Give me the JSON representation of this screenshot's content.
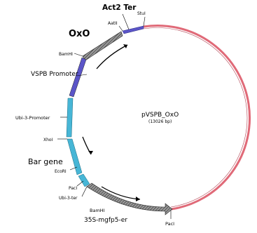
{
  "plasmid": {
    "name": "pVSPB_OxO",
    "size": "(13026 bp)"
  },
  "colors": {
    "backbone": "#e06a78",
    "vspb_promoter": "#5b55c8",
    "ubi_promoter": "#47b6d6",
    "feature_gray": "#8a8a8a"
  },
  "labels": {
    "act2_ter": "Act2 Ter",
    "stul": "StuI",
    "aatii": "AatII",
    "oxo": "OxO",
    "bamhi_top": "BamHI",
    "vspb_promoter": "VSPB Promoter",
    "ubi3_promoter": "Ubi-3-Promoter",
    "xhoi": "XhoI",
    "bar_gene": "Bar gene",
    "ecori": "EcoRI",
    "paci_left": "PacI",
    "ubi3_ter": "Ubi-3-ter",
    "bamhi_bottom": "BamHI",
    "mgfp5": "35S-mgfp5-er",
    "paci_bottom": "PacI"
  }
}
